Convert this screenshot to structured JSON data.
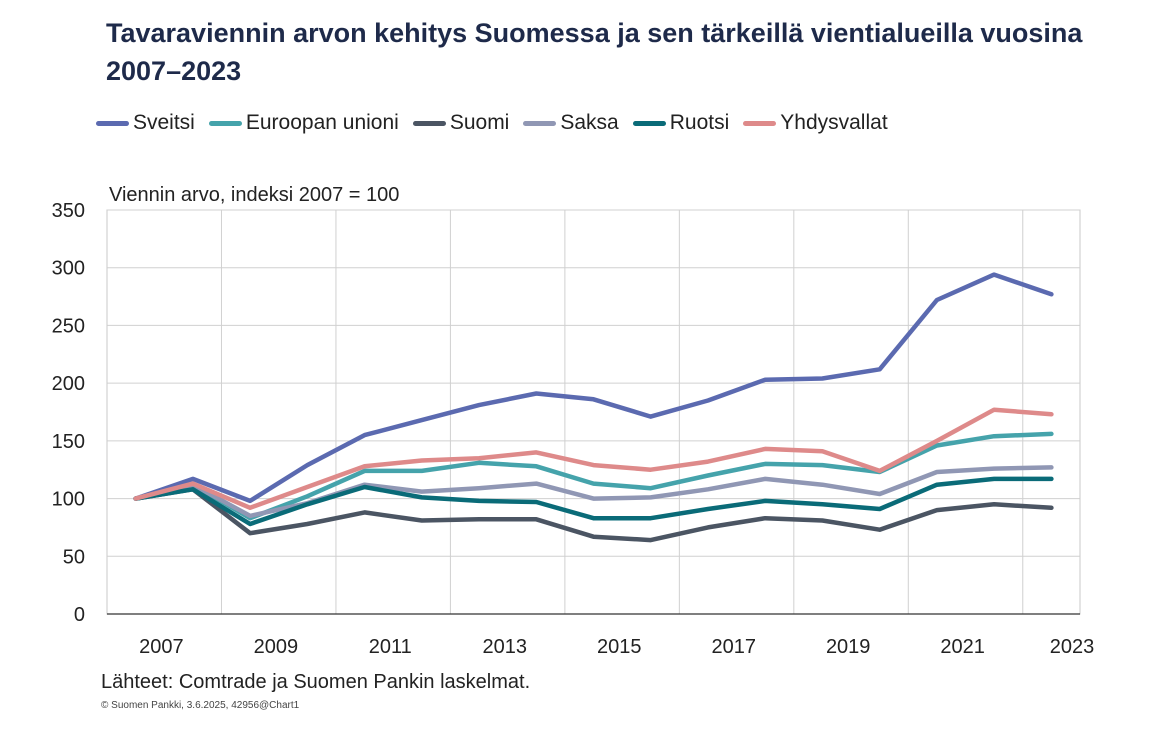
{
  "chart_data": {
    "type": "line",
    "title": "Tavaraviennin arvon kehitys Suomessa ja sen tärkeillä vientialueilla vuosina 2007–2023",
    "ylabel": "Viennin arvo, indeksi 2007 = 100",
    "xlabel": "",
    "x": [
      2007,
      2008,
      2009,
      2010,
      2011,
      2012,
      2013,
      2014,
      2015,
      2016,
      2017,
      2018,
      2019,
      2020,
      2021,
      2022,
      2023
    ],
    "x_tick_labels": [
      "2007",
      "2009",
      "2011",
      "2013",
      "2015",
      "2017",
      "2019",
      "2021",
      "2023"
    ],
    "y_tick_labels": [
      "350",
      "300",
      "250",
      "200",
      "150",
      "100",
      "50",
      "0"
    ],
    "ylim": [
      0,
      350
    ],
    "grid": true,
    "legend_position": "top",
    "series": [
      {
        "name": "Sveitsi",
        "color": "#5b6ab0",
        "values": [
          100,
          117,
          98,
          129,
          155,
          168,
          181,
          191,
          186,
          171,
          185,
          203,
          204,
          212,
          272,
          294,
          277
        ]
      },
      {
        "name": "Euroopan unioni",
        "color": "#45a3ab",
        "values": [
          100,
          112,
          83,
          102,
          124,
          124,
          131,
          128,
          113,
          109,
          120,
          130,
          129,
          123,
          146,
          154,
          156
        ]
      },
      {
        "name": "Suomi",
        "color": "#4b5563",
        "values": [
          100,
          108,
          70,
          78,
          88,
          81,
          82,
          82,
          67,
          64,
          75,
          83,
          81,
          73,
          90,
          95,
          92
        ]
      },
      {
        "name": "Saksa",
        "color": "#9097b4",
        "values": [
          100,
          112,
          85,
          96,
          112,
          106,
          109,
          113,
          100,
          101,
          108,
          117,
          112,
          104,
          123,
          126,
          127
        ]
      },
      {
        "name": "Ruotsi",
        "color": "#0a6b78",
        "values": [
          100,
          108,
          78,
          95,
          110,
          101,
          98,
          97,
          83,
          83,
          91,
          98,
          95,
          91,
          112,
          117,
          117
        ]
      },
      {
        "name": "Yhdysvallat",
        "color": "#de8a8a",
        "values": [
          100,
          113,
          92,
          110,
          128,
          133,
          135,
          140,
          129,
          125,
          132,
          143,
          141,
          124,
          150,
          177,
          173
        ]
      }
    ],
    "source": "Lähteet: Comtrade ja Suomen Pankin laskelmat.",
    "copyright": "© Suomen Pankki, 3.6.2025, 42956@Chart1"
  }
}
